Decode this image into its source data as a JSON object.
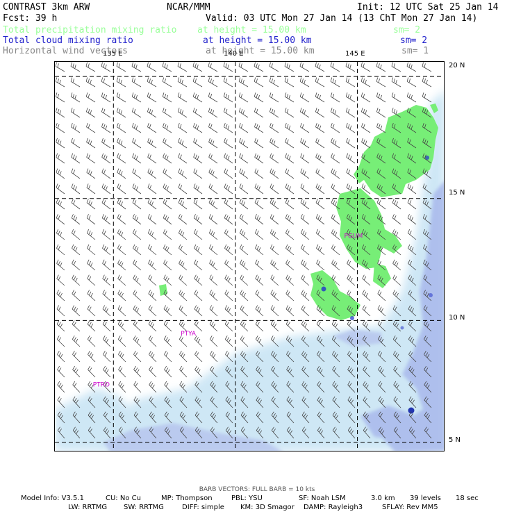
{
  "header": {
    "model": "CONTRAST  3km ARW",
    "center": "NCAR/MMM",
    "init": "Init: 12 UTC Sat 25 Jan 14",
    "fcst": "Fcst:    39 h",
    "valid": "Valid: 03 UTC Mon 27 Jan 14 (13 ChT Mon 27 Jan 14)"
  },
  "fields": [
    {
      "name": "Total precipitation mixing ratio",
      "level": "at height = 15.00 km",
      "smooth": "sm= 2",
      "color": "#99ff99"
    },
    {
      "name": "Total cloud mixing ratio",
      "level": "at height = 15.00 km",
      "smooth": "sm= 2",
      "color": "#2222cc"
    },
    {
      "name": "Horizontal wind vectors",
      "level": "at height = 15.00 km",
      "smooth": "sm= 1",
      "color": "#888888"
    }
  ],
  "map": {
    "lon_labels": [
      "135 E",
      "140 E",
      "145 E"
    ],
    "lat_labels": [
      "20 N",
      "15 N",
      "10 N",
      "5 N"
    ],
    "lon_range": [
      132.6,
      148.6
    ],
    "lat_range": [
      4.6,
      20.6
    ],
    "grid_lons": [
      135,
      140,
      145
    ],
    "grid_lats": [
      5,
      10,
      15,
      20
    ],
    "stations": [
      {
        "id": "PGUM",
        "lon": 144.8,
        "lat": 13.5
      },
      {
        "id": "PTYA",
        "lon": 138.1,
        "lat": 9.5
      },
      {
        "id": "PTRO",
        "lon": 134.5,
        "lat": 7.4
      }
    ],
    "precip_color": "#77ee77",
    "cloud_light": "#cce6f5",
    "cloud_mid": "#a9b9ec",
    "cloud_core": "#2233cc"
  },
  "footer": {
    "barb_note": "BARB VECTORS:  FULL BARB = 10 kts",
    "line1": [
      "Model Info: V3.5.1",
      "CU: No Cu",
      "MP: Thompson",
      "PBL: YSU",
      "SF: Noah LSM",
      "3.0 km",
      "39 levels",
      "18 sec"
    ],
    "line2": [
      "LW: RRTMG",
      "SW: RRTMG",
      "DIFF: simple",
      "KM: 3D Smagor",
      "DAMP: Rayleigh3",
      "SFLAY: Rev MM5"
    ]
  }
}
